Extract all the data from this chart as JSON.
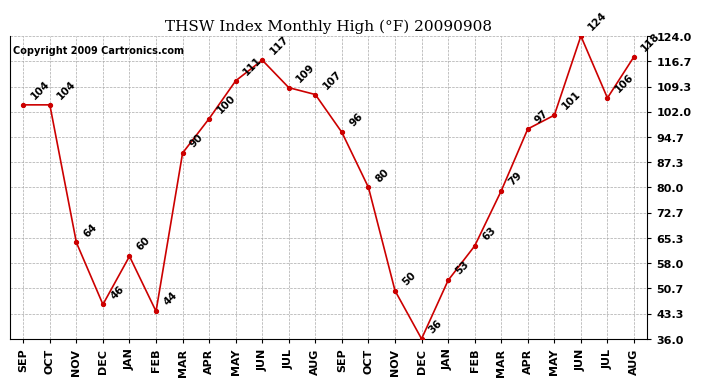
{
  "title": "THSW Index Monthly High (°F) 20090908",
  "copyright": "Copyright 2009 Cartronics.com",
  "months": [
    "SEP",
    "OCT",
    "NOV",
    "DEC",
    "JAN",
    "FEB",
    "MAR",
    "APR",
    "MAY",
    "JUN",
    "JUL",
    "AUG",
    "SEP",
    "OCT",
    "NOV",
    "DEC",
    "JAN",
    "FEB",
    "MAR",
    "APR",
    "MAY",
    "JUN",
    "JUL",
    "AUG"
  ],
  "values": [
    104,
    104,
    64,
    46,
    60,
    44,
    90,
    100,
    111,
    117,
    109,
    107,
    96,
    80,
    50,
    36,
    53,
    63,
    79,
    97,
    101,
    124,
    106,
    118
  ],
  "line_color": "#cc0000",
  "marker_color": "#cc0000",
  "background_color": "#ffffff",
  "grid_color": "#aaaaaa",
  "ylim": [
    36.0,
    124.0
  ],
  "yticks": [
    36.0,
    43.3,
    50.7,
    58.0,
    65.3,
    72.7,
    80.0,
    87.3,
    94.7,
    102.0,
    109.3,
    116.7,
    124.0
  ],
  "title_fontsize": 11,
  "tick_fontsize": 8,
  "label_fontsize": 7.5,
  "copyright_fontsize": 7
}
